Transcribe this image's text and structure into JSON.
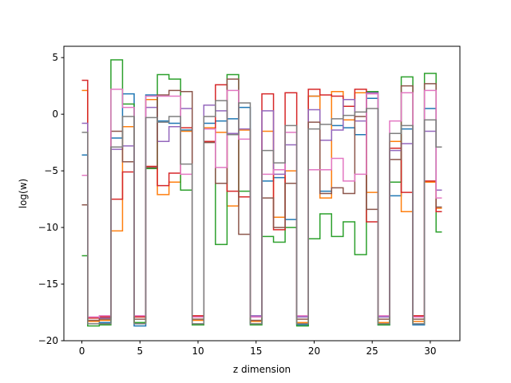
{
  "chart_data": {
    "type": "line",
    "drawstyle": "steps-mid",
    "title": "",
    "xlabel": "z dimension",
    "ylabel": "log(w)",
    "xlim": [
      -1.55,
      32.55
    ],
    "ylim": [
      -20,
      6
    ],
    "xticks": [
      0,
      5,
      10,
      15,
      20,
      25,
      30
    ],
    "yticks": [
      -20,
      -15,
      -10,
      -5,
      0,
      5
    ],
    "x": [
      0,
      1,
      2,
      3,
      4,
      5,
      6,
      7,
      8,
      9,
      10,
      11,
      12,
      13,
      14,
      15,
      16,
      17,
      18,
      19,
      20,
      21,
      22,
      23,
      24,
      25,
      26,
      27,
      28,
      29,
      30,
      31
    ],
    "series": [
      {
        "color": "#1f77b4",
        "values": [
          -3.6,
          -18.5,
          -18.4,
          -2.1,
          1.8,
          -18.7,
          1.7,
          -0.6,
          -0.8,
          -1.4,
          -18.5,
          -0.8,
          -0.6,
          -0.4,
          0.6,
          -18.5,
          -5.9,
          -5.6,
          -9.3,
          -18.6,
          1.6,
          -6.8,
          -1.0,
          -1.2,
          -1.8,
          1.4,
          -18.6,
          -7.2,
          -1.3,
          -18.6,
          0.5,
          -6.7
        ]
      },
      {
        "color": "#ff7f0e",
        "values": [
          2.1,
          -18.3,
          -18.2,
          -10.3,
          -1.1,
          -18.4,
          1.3,
          -7.1,
          -6.0,
          -1.5,
          -18.2,
          -1.2,
          -1.6,
          -8.1,
          -1.4,
          -18.3,
          -1.5,
          -9.1,
          -5.0,
          -18.4,
          1.6,
          -7.4,
          2.0,
          -0.5,
          1.9,
          -6.9,
          -18.4,
          -2.4,
          -8.6,
          -18.3,
          -6.0,
          -8.3
        ]
      },
      {
        "color": "#2ca02c",
        "values": [
          -12.5,
          -18.7,
          -18.6,
          4.8,
          0.9,
          -18.4,
          -4.8,
          3.5,
          3.1,
          -6.7,
          -18.6,
          -2.4,
          -11.5,
          3.5,
          -6.8,
          -18.6,
          -10.8,
          -11.3,
          -10.0,
          -18.7,
          -11.0,
          -8.8,
          -10.8,
          -9.5,
          -12.4,
          2.0,
          -18.6,
          -6.0,
          3.3,
          -18.5,
          3.6,
          -10.4
        ]
      },
      {
        "color": "#d62728",
        "values": [
          3.0,
          -18.0,
          -17.9,
          -7.5,
          -5.1,
          -17.9,
          -4.6,
          -6.3,
          -5.2,
          -1.2,
          -17.8,
          -2.4,
          2.6,
          -6.8,
          -7.3,
          -17.9,
          1.8,
          -10.2,
          1.9,
          -17.8,
          2.2,
          1.7,
          1.6,
          0.7,
          2.2,
          -9.5,
          -17.8,
          -3.0,
          -6.9,
          -17.8,
          -5.9,
          -8.6
        ]
      },
      {
        "color": "#9467bd",
        "values": [
          -0.8,
          -17.9,
          -18.0,
          -3.1,
          -2.8,
          -17.8,
          0.6,
          -2.4,
          -1.1,
          0.5,
          -17.9,
          0.8,
          0.3,
          -1.7,
          -1.3,
          -17.8,
          0.3,
          -5.3,
          -2.7,
          -17.9,
          0.4,
          -2.3,
          -1.4,
          1.3,
          -0.6,
          1.9,
          -17.9,
          -3.2,
          -2.6,
          -17.9,
          -1.5,
          -6.7
        ]
      },
      {
        "color": "#8c564b",
        "values": [
          -8.0,
          -18.2,
          -18.1,
          -1.5,
          -4.2,
          -18.1,
          -4.7,
          1.7,
          2.1,
          2.0,
          -18.1,
          -2.5,
          -6.1,
          3.1,
          -10.6,
          -18.2,
          -7.4,
          -10.0,
          -6.1,
          -18.1,
          -0.7,
          -7.0,
          -6.5,
          -7.0,
          -0.2,
          -8.4,
          -18.1,
          -4.0,
          2.5,
          -18.1,
          2.7,
          -8.2
        ]
      },
      {
        "color": "#e377c2",
        "values": [
          -5.4,
          -17.9,
          -17.8,
          2.2,
          0.6,
          -17.8,
          1.6,
          1.6,
          1.6,
          -5.3,
          -17.9,
          -1.3,
          -4.7,
          2.1,
          -2.2,
          -17.9,
          -5.3,
          -4.9,
          -1.6,
          -17.8,
          -4.9,
          -4.9,
          -3.9,
          -5.9,
          -5.3,
          1.8,
          -17.8,
          -0.6,
          1.9,
          -17.9,
          2.1,
          -7.4
        ]
      },
      {
        "color": "#7f7f7f",
        "values": [
          -1.6,
          -18.5,
          -18.5,
          -2.9,
          -0.2,
          -18.5,
          -0.3,
          -0.7,
          -0.2,
          -4.4,
          -18.5,
          -0.2,
          1.2,
          -1.8,
          1.0,
          -18.5,
          -3.2,
          -4.3,
          -1.0,
          -18.5,
          -1.3,
          -0.9,
          -0.4,
          -0.1,
          0.2,
          0.5,
          -18.5,
          -1.7,
          -1.0,
          -18.5,
          -0.5,
          -2.9
        ]
      }
    ],
    "grid": false,
    "legend": "none"
  }
}
